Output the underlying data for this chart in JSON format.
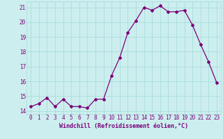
{
  "x": [
    0,
    1,
    2,
    3,
    4,
    5,
    6,
    7,
    8,
    9,
    10,
    11,
    12,
    13,
    14,
    15,
    16,
    17,
    18,
    19,
    20,
    21,
    22,
    23
  ],
  "y": [
    14.3,
    14.5,
    14.9,
    14.3,
    14.8,
    14.3,
    14.3,
    14.2,
    14.8,
    14.8,
    16.4,
    17.6,
    19.3,
    20.1,
    21.0,
    20.8,
    21.1,
    20.7,
    20.7,
    20.8,
    19.8,
    18.5,
    17.3,
    15.9
  ],
  "line_color": "#7B007B",
  "marker": "D",
  "marker_size": 2.0,
  "bg_color": "#cceeee",
  "grid_color": "#aadddd",
  "xlabel": "Windchill (Refroidissement éolien,°C)",
  "xlabel_color": "#7B007B",
  "xlabel_fontsize": 6.0,
  "ylim": [
    13.8,
    21.4
  ],
  "yticks": [
    14,
    15,
    16,
    17,
    18,
    19,
    20,
    21
  ],
  "xtick_labels": [
    "0",
    "1",
    "2",
    "3",
    "4",
    "5",
    "6",
    "7",
    "8",
    "9",
    "10",
    "11",
    "12",
    "13",
    "14",
    "15",
    "16",
    "17",
    "18",
    "19",
    "20",
    "21",
    "22",
    "23"
  ],
  "tick_color": "#7B007B",
  "tick_fontsize": 5.5
}
